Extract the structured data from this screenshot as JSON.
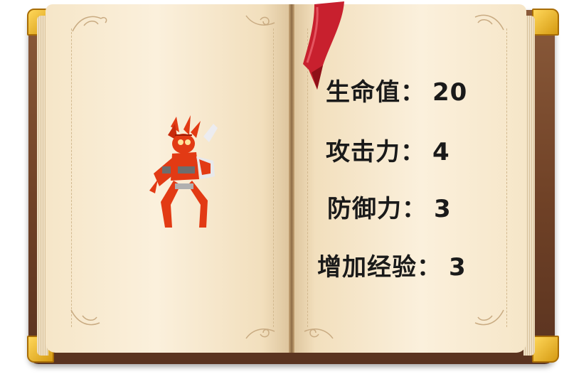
{
  "monster": {
    "sprite_icon": "red-scizor-monster-sprite"
  },
  "stats": {
    "hp": {
      "label": "生命值",
      "colon": "：",
      "value": "20"
    },
    "attack": {
      "label": "攻击力",
      "colon": "：",
      "value": "4"
    },
    "defense": {
      "label": "防御力",
      "colon": "：",
      "value": "3"
    },
    "exp": {
      "label": "增加经验",
      "colon": "：",
      "value": "3"
    }
  },
  "colors": {
    "cover": "#6f4126",
    "page": "#fbf0dc",
    "ribbon": "#c8202e",
    "corner_gold": "#f0bb2a",
    "monster_red": "#e23a14",
    "text": "#1a1a1a"
  },
  "icons": {
    "bookmark": "red-ribbon-bookmark-icon",
    "decor": "floral-flourish-icon"
  }
}
